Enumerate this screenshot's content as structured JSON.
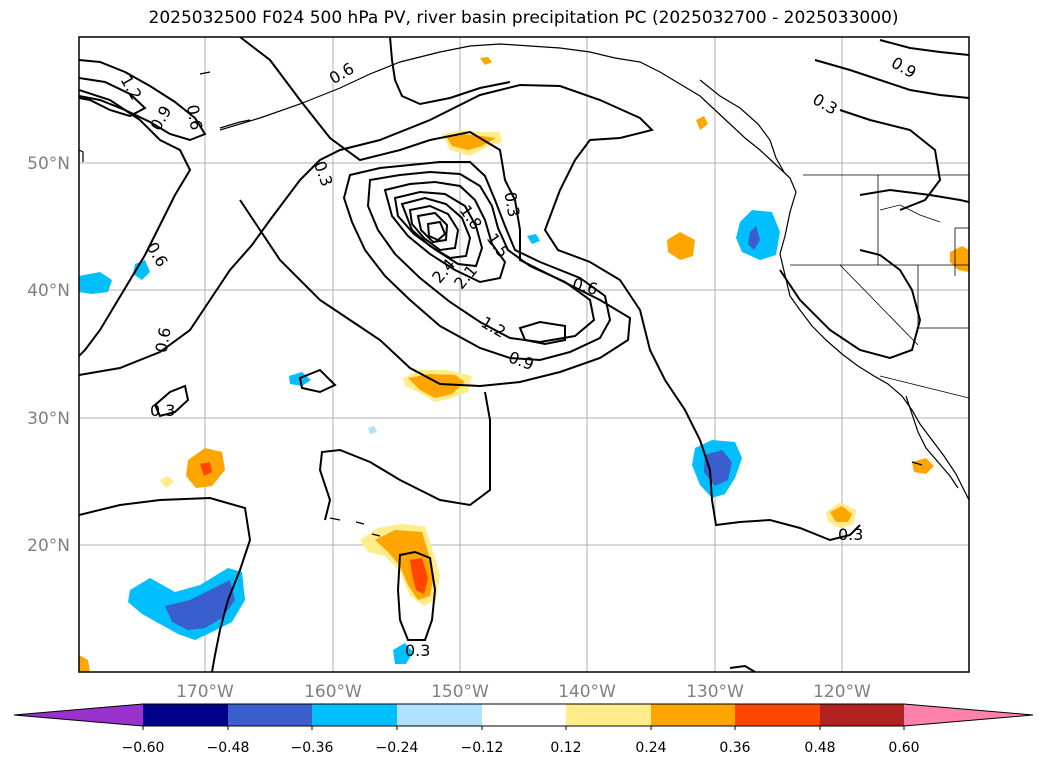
{
  "title": "2025032500 F024 500 hPa PV, river basin precipitation PC (2025032700 - 2025033000)",
  "lat_labels": [
    "50°N",
    "40°N",
    "30°N",
    "20°N"
  ],
  "lon_labels": [
    "170°W",
    "160°W",
    "150°W",
    "140°W",
    "130°W",
    "120°W"
  ],
  "colorbar": {
    "colors": [
      "#9932cc",
      "#00008b",
      "#3a5fcd",
      "#00bfff",
      "#b0e2ff",
      "#ffffff",
      "#ffec8b",
      "#ffa500",
      "#ff4500",
      "#b22222",
      "#ff82ab"
    ],
    "tick_labels": [
      "−0.60",
      "−0.48",
      "−0.36",
      "−0.24",
      "−0.12",
      "0.12",
      "0.24",
      "0.36",
      "0.48",
      "0.60"
    ]
  },
  "contour_labels": [
    "1.2",
    "0.9",
    "0.6",
    "0.6",
    "0.3",
    "0.6",
    "0.3",
    "0.3",
    "0.6",
    "0.9",
    "0.3",
    "1.8",
    "1.5",
    "2.4",
    "2.1",
    "0.6",
    "1.2",
    "0.9",
    "0.3",
    "0.3"
  ],
  "colors": {
    "frame": "#000000",
    "grid": "#b0b0b0",
    "coast": "#000000"
  }
}
